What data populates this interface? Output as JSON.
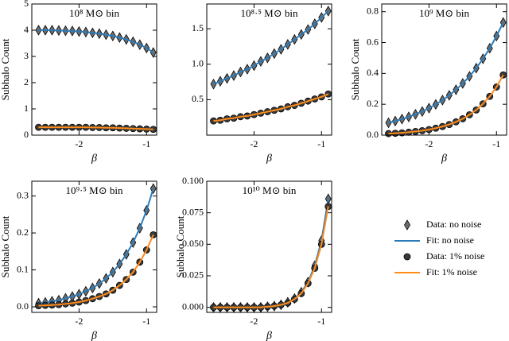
{
  "chart_data": [
    {
      "type": "line",
      "title": "10⁸ M⊙ bin",
      "xlabel": "β",
      "ylabel": "Subhalo Count",
      "x": [
        -2.6,
        -2.5,
        -2.4,
        -2.3,
        -2.2,
        -2.1,
        -2.0,
        -1.9,
        -1.8,
        -1.7,
        -1.6,
        -1.5,
        -1.4,
        -1.3,
        -1.2,
        -1.1,
        -1.0,
        -0.9
      ],
      "series": [
        {
          "values": [
            4.0,
            4.0,
            4.0,
            3.99,
            3.98,
            3.97,
            3.95,
            3.93,
            3.9,
            3.87,
            3.83,
            3.78,
            3.72,
            3.65,
            3.56,
            3.45,
            3.32,
            3.15
          ]
        },
        {
          "values": [
            4.0,
            4.0,
            4.0,
            3.99,
            3.98,
            3.97,
            3.95,
            3.93,
            3.9,
            3.87,
            3.83,
            3.78,
            3.72,
            3.65,
            3.56,
            3.45,
            3.32,
            3.15
          ]
        },
        {
          "values": [
            0.3,
            0.3,
            0.3,
            0.3,
            0.3,
            0.3,
            0.3,
            0.3,
            0.29,
            0.29,
            0.28,
            0.28,
            0.27,
            0.26,
            0.25,
            0.24,
            0.23,
            0.22
          ]
        },
        {
          "values": [
            0.3,
            0.3,
            0.3,
            0.3,
            0.3,
            0.3,
            0.3,
            0.3,
            0.29,
            0.29,
            0.28,
            0.28,
            0.27,
            0.26,
            0.25,
            0.24,
            0.23,
            0.22
          ]
        }
      ],
      "xlim": [
        -2.7,
        -0.85
      ],
      "xticks": [
        -2,
        -1
      ],
      "ylim": [
        0,
        5
      ],
      "yticks": [
        0,
        1,
        2,
        3,
        4,
        5
      ]
    },
    {
      "type": "line",
      "title": "10⁸·⁵ M⊙ bin",
      "xlabel": "β",
      "x": [
        -2.6,
        -2.5,
        -2.4,
        -2.3,
        -2.2,
        -2.1,
        -2.0,
        -1.9,
        -1.8,
        -1.7,
        -1.6,
        -1.5,
        -1.4,
        -1.3,
        -1.2,
        -1.1,
        -1.0,
        -0.9
      ],
      "series": [
        {
          "values": [
            0.72,
            0.76,
            0.8,
            0.84,
            0.89,
            0.93,
            0.98,
            1.04,
            1.09,
            1.15,
            1.21,
            1.28,
            1.35,
            1.42,
            1.49,
            1.57,
            1.66,
            1.75
          ]
        },
        {
          "values": [
            0.72,
            0.76,
            0.8,
            0.84,
            0.89,
            0.93,
            0.98,
            1.04,
            1.09,
            1.15,
            1.21,
            1.28,
            1.35,
            1.42,
            1.49,
            1.57,
            1.66,
            1.75
          ]
        },
        {
          "values": [
            0.2,
            0.21,
            0.23,
            0.24,
            0.26,
            0.27,
            0.29,
            0.31,
            0.33,
            0.35,
            0.37,
            0.4,
            0.42,
            0.45,
            0.48,
            0.51,
            0.54,
            0.58
          ]
        },
        {
          "values": [
            0.2,
            0.21,
            0.23,
            0.24,
            0.26,
            0.27,
            0.29,
            0.31,
            0.33,
            0.35,
            0.37,
            0.4,
            0.42,
            0.45,
            0.48,
            0.51,
            0.54,
            0.58
          ]
        }
      ],
      "xlim": [
        -2.7,
        -0.85
      ],
      "xticks": [
        -2,
        -1
      ],
      "ylim": [
        0,
        1.85
      ],
      "yticks": [
        {
          "value": 0.5,
          "label": "0.5"
        },
        {
          "value": 1,
          "label": "1.0"
        },
        {
          "value": 1.5,
          "label": "1.5"
        }
      ]
    },
    {
      "type": "line",
      "title": "10⁹ M⊙ bin",
      "xlabel": "β",
      "ylabel": "Subhalo Count",
      "x": [
        -2.6,
        -2.5,
        -2.4,
        -2.3,
        -2.2,
        -2.1,
        -2.0,
        -1.9,
        -1.8,
        -1.7,
        -1.6,
        -1.5,
        -1.4,
        -1.3,
        -1.2,
        -1.1,
        -1.0,
        -0.9
      ],
      "series": [
        {
          "values": [
            0.08,
            0.091,
            0.104,
            0.118,
            0.135,
            0.153,
            0.175,
            0.199,
            0.227,
            0.258,
            0.294,
            0.335,
            0.381,
            0.434,
            0.495,
            0.563,
            0.642,
            0.73
          ]
        },
        {
          "values": [
            0.08,
            0.091,
            0.104,
            0.118,
            0.135,
            0.153,
            0.175,
            0.199,
            0.227,
            0.258,
            0.294,
            0.335,
            0.381,
            0.434,
            0.495,
            0.563,
            0.642,
            0.73
          ]
        },
        {
          "values": [
            0.01,
            0.012,
            0.015,
            0.019,
            0.024,
            0.029,
            0.036,
            0.045,
            0.056,
            0.069,
            0.086,
            0.106,
            0.132,
            0.163,
            0.203,
            0.251,
            0.312,
            0.39
          ]
        },
        {
          "values": [
            0.01,
            0.012,
            0.015,
            0.019,
            0.024,
            0.029,
            0.036,
            0.045,
            0.056,
            0.069,
            0.086,
            0.106,
            0.132,
            0.163,
            0.203,
            0.251,
            0.312,
            0.39
          ]
        }
      ],
      "xlim": [
        -2.7,
        -0.85
      ],
      "xticks": [
        -2,
        -1
      ],
      "ylim": [
        0,
        0.85
      ],
      "yticks": [
        {
          "value": 0,
          "label": "0.0"
        },
        {
          "value": 0.2,
          "label": "0.2"
        },
        {
          "value": 0.4,
          "label": "0.4"
        },
        {
          "value": 0.6,
          "label": "0.6"
        },
        {
          "value": 0.8,
          "label": "0.8"
        }
      ]
    },
    {
      "type": "line",
      "title": "10⁹·⁵ M⊙ bin",
      "xlabel": "β",
      "ylabel": "Subhalo Count",
      "x": [
        -2.6,
        -2.5,
        -2.4,
        -2.3,
        -2.2,
        -2.1,
        -2.0,
        -1.9,
        -1.8,
        -1.7,
        -1.6,
        -1.5,
        -1.4,
        -1.3,
        -1.2,
        -1.1,
        -1.0,
        -0.9
      ],
      "series": [
        {
          "values": [
            0.01,
            0.012,
            0.015,
            0.018,
            0.023,
            0.028,
            0.034,
            0.042,
            0.051,
            0.063,
            0.077,
            0.094,
            0.116,
            0.142,
            0.174,
            0.213,
            0.261,
            0.32
          ]
        },
        {
          "values": [
            0.01,
            0.012,
            0.015,
            0.018,
            0.023,
            0.028,
            0.034,
            0.042,
            0.051,
            0.063,
            0.077,
            0.094,
            0.116,
            0.142,
            0.174,
            0.213,
            0.261,
            0.32
          ]
        },
        {
          "values": [
            0.003,
            0.004,
            0.005,
            0.006,
            0.008,
            0.01,
            0.013,
            0.017,
            0.022,
            0.028,
            0.035,
            0.045,
            0.058,
            0.074,
            0.094,
            0.121,
            0.154,
            0.195
          ]
        },
        {
          "values": [
            0.003,
            0.004,
            0.005,
            0.006,
            0.008,
            0.01,
            0.013,
            0.017,
            0.022,
            0.028,
            0.035,
            0.045,
            0.058,
            0.074,
            0.094,
            0.121,
            0.154,
            0.195
          ]
        }
      ],
      "xlim": [
        -2.7,
        -0.85
      ],
      "xticks": [
        -2,
        -1
      ],
      "ylim": [
        -0.015,
        0.34
      ],
      "yticks": [
        {
          "value": 0,
          "label": "0.0"
        },
        {
          "value": 0.1,
          "label": "0.1"
        },
        {
          "value": 0.2,
          "label": "0.2"
        },
        {
          "value": 0.3,
          "label": "0.3"
        }
      ]
    },
    {
      "type": "line",
      "title": "10¹⁰ M⊙ bin",
      "xlabel": "β",
      "ylabel": "Subhalo Count",
      "x": [
        -2.6,
        -2.5,
        -2.4,
        -2.3,
        -2.2,
        -2.1,
        -2.0,
        -1.9,
        -1.8,
        -1.7,
        -1.6,
        -1.5,
        -1.4,
        -1.3,
        -1.2,
        -1.1,
        -1.0,
        -0.9
      ],
      "series": [
        {
          "values": [
            0,
            0,
            0,
            0,
            0,
            0,
            0,
            0,
            0.0005,
            0.001,
            0.002,
            0.004,
            0.007,
            0.012,
            0.02,
            0.033,
            0.053,
            0.086
          ]
        },
        {
          "values": [
            0,
            0,
            0,
            0,
            0,
            0,
            0,
            0,
            0.0005,
            0.001,
            0.002,
            0.004,
            0.007,
            0.012,
            0.02,
            0.033,
            0.053,
            0.086
          ]
        },
        {
          "values": [
            0,
            0,
            0,
            0,
            0,
            0,
            0,
            0,
            0.0005,
            0.001,
            0.002,
            0.0035,
            0.0065,
            0.011,
            0.019,
            0.031,
            0.05,
            0.08
          ]
        },
        {
          "values": [
            0,
            0,
            0,
            0,
            0,
            0,
            0,
            0,
            0.0005,
            0.001,
            0.002,
            0.0035,
            0.0065,
            0.011,
            0.019,
            0.031,
            0.05,
            0.08
          ]
        }
      ],
      "xlim": [
        -2.7,
        -0.85
      ],
      "xticks": [
        -2,
        -1
      ],
      "ylim": [
        -0.004,
        0.1
      ],
      "yticks": [
        {
          "value": 0,
          "label": "0.000"
        },
        {
          "value": 0.025,
          "label": "0.025"
        },
        {
          "value": 0.05,
          "label": "0.050"
        },
        {
          "value": 0.075,
          "label": "0.075"
        },
        {
          "value": 0.1,
          "label": "0.100"
        }
      ]
    }
  ],
  "legend": {
    "entries": [
      {
        "name": "Data: no noise",
        "marker": "diamond",
        "color": "#6e6e6e"
      },
      {
        "name": "Fit: no noise",
        "marker": "line",
        "color": "#2b7bb9"
      },
      {
        "name": "Data: 1% noise",
        "marker": "circle",
        "color": "#3a3a3a"
      },
      {
        "name": "Fit: 1% noise",
        "marker": "line",
        "color": "#ff8c1a"
      }
    ]
  }
}
